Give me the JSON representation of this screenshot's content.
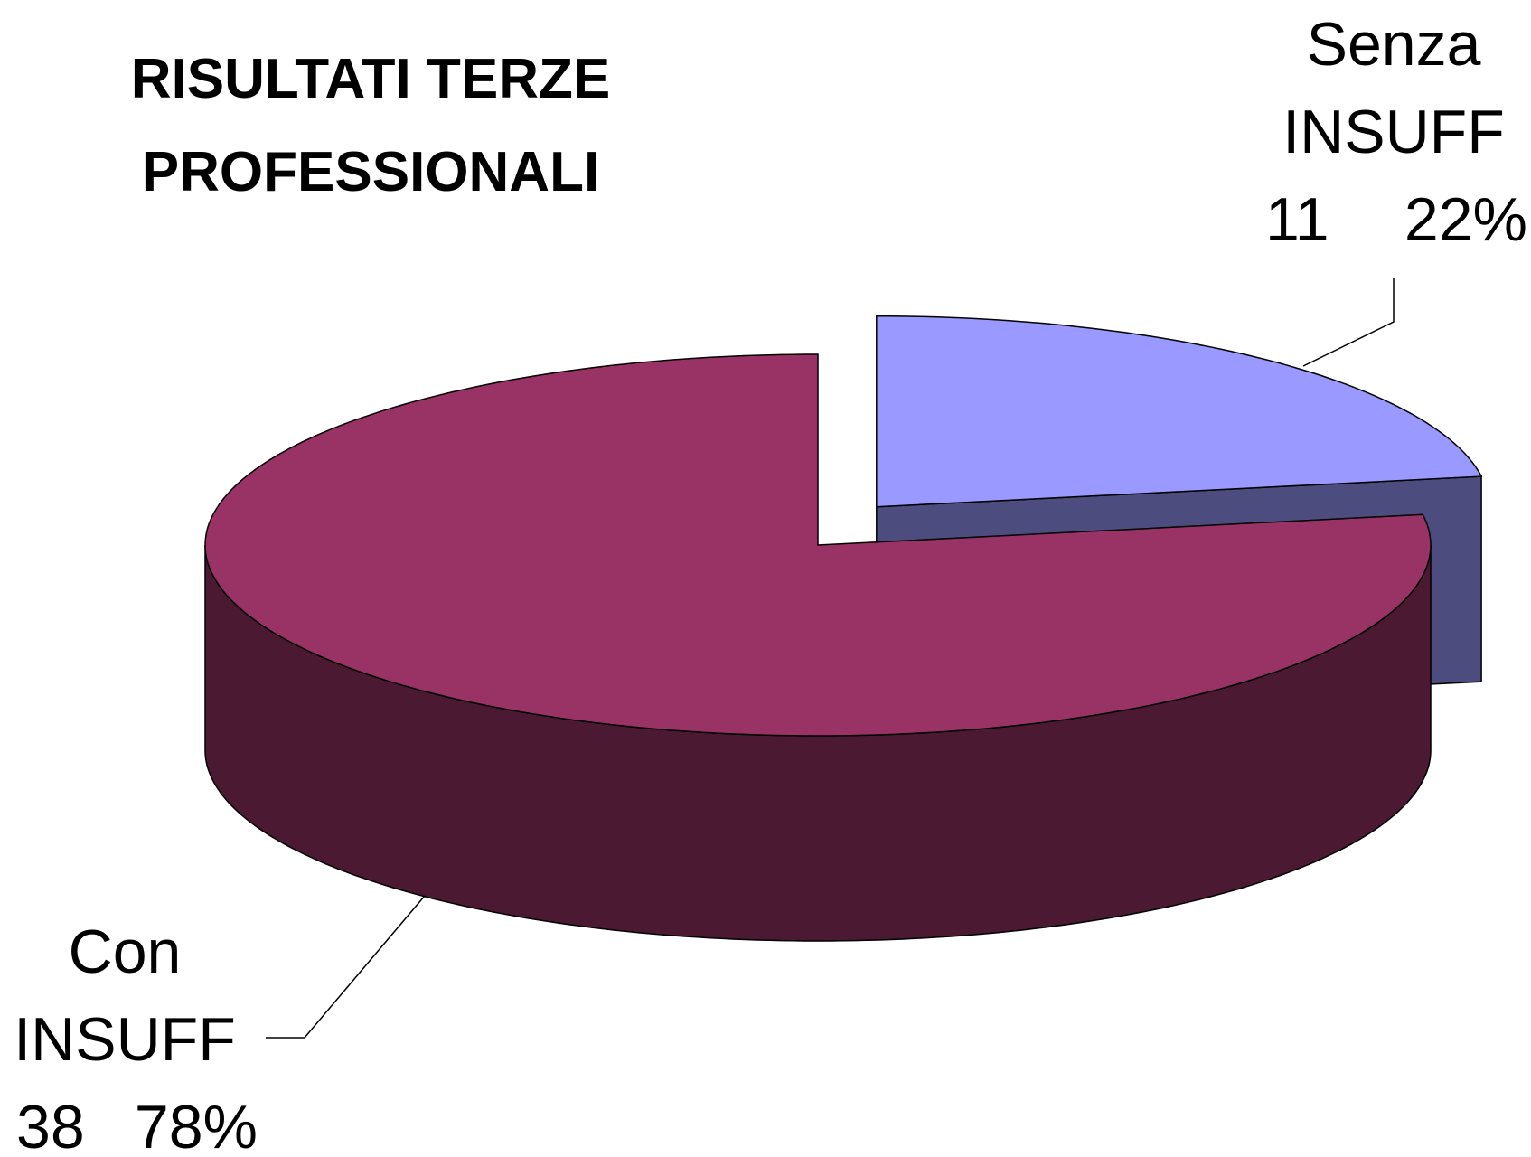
{
  "chart_data": {
    "type": "pie3d",
    "title_lines": [
      "RISULTATI TERZE",
      "PROFESSIONALI"
    ],
    "categories": [
      "Senza INSUFF",
      "Con INSUFF"
    ],
    "values": [
      11,
      38
    ],
    "percent_labels": [
      "22%",
      "78%"
    ],
    "colors": [
      "#9999ff",
      "#993366"
    ],
    "exploded": [
      true,
      false
    ]
  }
}
